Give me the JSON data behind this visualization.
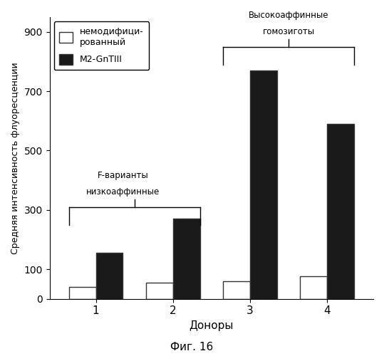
{
  "categories": [
    "1",
    "2",
    "3",
    "4"
  ],
  "white_values": [
    40,
    55,
    60,
    75
  ],
  "black_values": [
    155,
    270,
    770,
    590
  ],
  "ylabel": "Средняя интенсивность флуоресценции",
  "xlabel": "Доноры",
  "ylim": [
    0,
    950
  ],
  "yticks": [
    0,
    100,
    300,
    500,
    700,
    900
  ],
  "legend_white": "немодифици-\nрованный",
  "legend_black": "M2-GnTIII",
  "annotation_left_line1": "низкоаффинные",
  "annotation_left_line2": "F-варианты",
  "annotation_right_line1": "Высокоаффинные",
  "annotation_right_line2": "гомозиготы",
  "bar_width": 0.35,
  "figure_caption": "Фиг. 16",
  "white_color": "#FFFFFF",
  "black_color": "#1a1a1a",
  "bar_edge_color": "#333333",
  "background_color": "#FFFFFF"
}
